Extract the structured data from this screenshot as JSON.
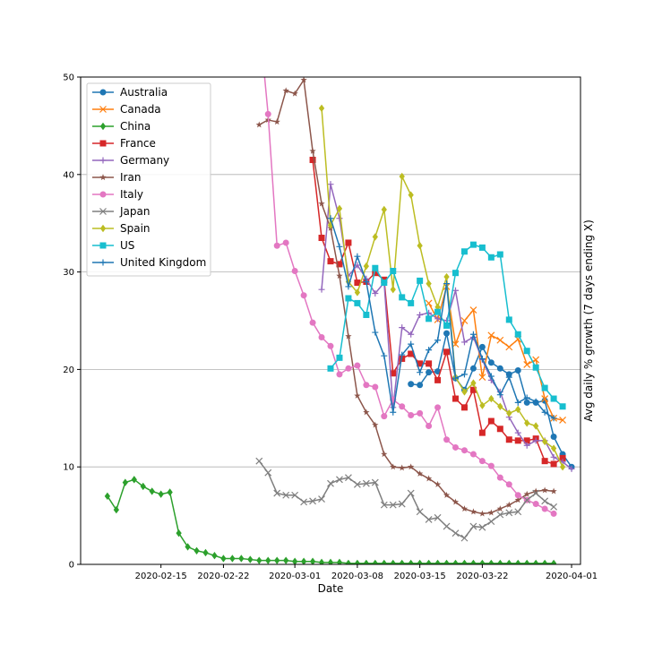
{
  "chart_data": {
    "type": "line",
    "title": "",
    "xlabel": "Date",
    "ylabel": "Avg daily % growth (7 days ending X)",
    "ylabel_position": "right",
    "ylim": [
      0,
      50
    ],
    "xlim": [
      "2020-02-06",
      "2020-04-02"
    ],
    "x_ticks": [
      "2020-02-15",
      "2020-02-22",
      "2020-03-01",
      "2020-03-08",
      "2020-03-15",
      "2020-03-22",
      "2020-04-01"
    ],
    "y_ticks": [
      0,
      10,
      20,
      30,
      40,
      50
    ],
    "grid": "horizontal",
    "legend_position": "top-left",
    "series": [
      {
        "name": "Australia",
        "color": "#1f77b4",
        "marker": "circle",
        "start": "2020-03-14",
        "values": [
          18.5,
          18.4,
          19.7,
          19.8,
          23.7,
          19.1,
          17.9,
          20.1,
          22.3,
          20.7,
          20.1,
          19.5,
          19.9,
          16.6,
          16.6,
          16.8,
          13.1,
          11.3,
          10.0
        ]
      },
      {
        "name": "Canada",
        "color": "#ff7f0e",
        "marker": "x",
        "start": "2020-03-16",
        "values": [
          26.8,
          25.1,
          28.5,
          22.6,
          25.0,
          26.1,
          19.2,
          23.5,
          23.0,
          22.3,
          23.1,
          20.5,
          21.0,
          17.0,
          15.0,
          14.8
        ]
      },
      {
        "name": "China",
        "color": "#2ca02c",
        "marker": "diamond",
        "start": "2020-02-09",
        "values": [
          7.0,
          5.6,
          8.4,
          8.7,
          8.0,
          7.5,
          7.2,
          7.4,
          3.2,
          1.8,
          1.4,
          1.2,
          0.9,
          0.6,
          0.6,
          0.6,
          0.5,
          0.4,
          0.4,
          0.4,
          0.4,
          0.3,
          0.3,
          0.3,
          0.2,
          0.2,
          0.2,
          0.1,
          0.1,
          0.1,
          0.1,
          0.1,
          0.1,
          0.1,
          0.1,
          0.1,
          0.1,
          0.1,
          0.1,
          0.1,
          0.1,
          0.1,
          0.1,
          0.1,
          0.1,
          0.1,
          0.1,
          0.1,
          0.1,
          0.1,
          0.1
        ]
      },
      {
        "name": "France",
        "color": "#d62728",
        "marker": "square",
        "start": "2020-03-03",
        "values": [
          41.5,
          33.5,
          31.1,
          30.8,
          33.0,
          28.9,
          29.0,
          29.9,
          29.2,
          19.6,
          21.1,
          21.6,
          20.6,
          20.6,
          18.9,
          21.8,
          17.0,
          16.1,
          17.9,
          13.5,
          14.7,
          13.9,
          12.8,
          12.7,
          12.7,
          12.9,
          10.6,
          10.3,
          10.9
        ]
      },
      {
        "name": "Germany",
        "color": "#9467bd",
        "marker": "plus",
        "start": "2020-03-04",
        "values": [
          28.2,
          39.0,
          35.5,
          29.6,
          30.7,
          29.3,
          27.8,
          28.9,
          16.1,
          24.3,
          23.6,
          25.6,
          25.8,
          25.2,
          25.0,
          28.1,
          22.8,
          23.3,
          21.0,
          18.9,
          17.7,
          15.1,
          13.5,
          12.2,
          12.7,
          12.7,
          11.0,
          10.5,
          9.8
        ]
      },
      {
        "name": "Iran",
        "color": "#8c564b",
        "marker": "star",
        "start": "2020-02-26",
        "values": [
          45.1,
          45.6,
          45.4,
          48.6,
          48.3,
          49.7,
          42.4,
          37.0,
          34.5,
          29.6,
          23.4,
          17.3,
          15.6,
          14.3,
          11.3,
          10.0,
          9.9,
          10.0,
          9.3,
          8.8,
          8.2,
          7.1,
          6.4,
          5.7,
          5.4,
          5.2,
          5.3,
          5.7,
          6.1,
          6.6,
          7.2,
          7.5,
          7.6,
          7.5
        ]
      },
      {
        "name": "Italy",
        "color": "#e377c2",
        "marker": "circle",
        "start": "2020-02-26",
        "values": [
          56.0,
          46.2,
          32.7,
          33.0,
          30.1,
          27.6,
          24.8,
          23.3,
          22.4,
          19.5,
          20.1,
          20.4,
          18.4,
          18.2,
          15.2,
          16.9,
          16.2,
          15.3,
          15.5,
          14.2,
          16.1,
          12.8,
          12.0,
          11.7,
          11.3,
          10.6,
          10.1,
          8.9,
          8.2,
          7.1,
          6.6,
          6.2,
          5.7,
          5.2
        ]
      },
      {
        "name": "Japan",
        "color": "#7f7f7f",
        "marker": "x",
        "start": "2020-02-26",
        "values": [
          10.6,
          9.4,
          7.3,
          7.1,
          7.1,
          6.4,
          6.5,
          6.7,
          8.3,
          8.7,
          8.9,
          8.2,
          8.3,
          8.4,
          6.1,
          6.1,
          6.2,
          7.3,
          5.4,
          4.6,
          4.8,
          3.9,
          3.2,
          2.7,
          3.9,
          3.8,
          4.4,
          5.1,
          5.3,
          5.4,
          6.6,
          7.3,
          6.5,
          5.9
        ]
      },
      {
        "name": "Spain",
        "color": "#bcbd22",
        "marker": "diamond",
        "start": "2020-03-04",
        "values": [
          46.8,
          34.8,
          36.5,
          29.0,
          27.9,
          30.6,
          33.6,
          36.4,
          28.2,
          39.8,
          37.9,
          32.7,
          28.8,
          26.4,
          29.5,
          19.2,
          17.7,
          18.6,
          16.3,
          17.0,
          16.2,
          15.5,
          15.9,
          14.5,
          14.2,
          12.6,
          11.9,
          10.0
        ]
      },
      {
        "name": "US",
        "color": "#17becf",
        "marker": "square",
        "start": "2020-03-05",
        "values": [
          20.1,
          21.2,
          27.3,
          26.8,
          25.6,
          30.4,
          28.9,
          30.1,
          27.4,
          26.8,
          29.1,
          25.2,
          25.9,
          24.5,
          29.9,
          32.1,
          32.8,
          32.5,
          31.5,
          31.8,
          25.1,
          23.6,
          21.9,
          20.2,
          18.1,
          17.0,
          16.2
        ]
      },
      {
        "name": "United Kingdom",
        "color": "#1f77b4",
        "marker": "plus",
        "start": "2020-03-05",
        "values": [
          35.5,
          32.6,
          28.5,
          31.6,
          29.0,
          23.8,
          21.4,
          15.6,
          21.5,
          22.6,
          19.7,
          22.0,
          23.0,
          28.8,
          19.1,
          19.5,
          23.6,
          21.1,
          19.3,
          17.4,
          19.2,
          16.6,
          17.1,
          16.7,
          15.6,
          15.0
        ]
      }
    ]
  }
}
